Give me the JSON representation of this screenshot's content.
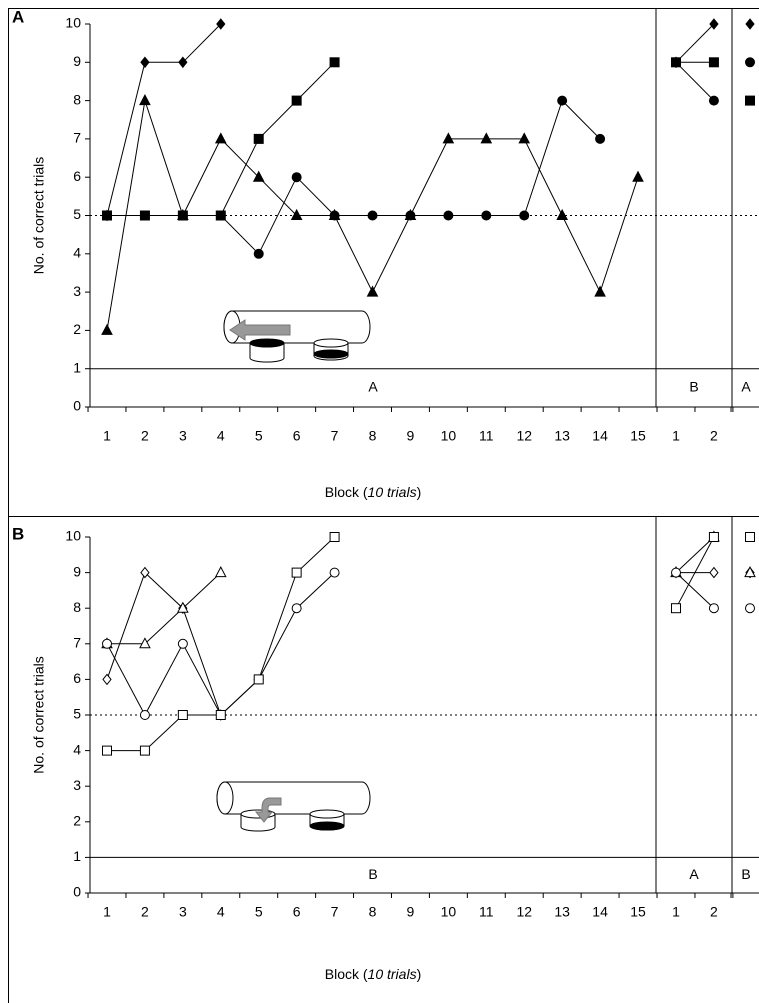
{
  "chart_data": [
    {
      "type": "line",
      "panel_label": "A",
      "ylabel": "No. of correct trials",
      "xlabel": [
        "Block (",
        "10 trials",
        ")"
      ],
      "ylim": [
        0,
        10
      ],
      "yticks": [
        0,
        1,
        2,
        3,
        4,
        5,
        6,
        7,
        8,
        9,
        10
      ],
      "reference_line": 5,
      "phase_band": [
        0,
        1
      ],
      "phases": [
        {
          "label": "A",
          "categories": [
            "1",
            "2",
            "3",
            "4",
            "5",
            "6",
            "7",
            "8",
            "9",
            "10",
            "11",
            "12",
            "13",
            "14",
            "15"
          ]
        },
        {
          "label": "B",
          "categories": [
            "1",
            "2"
          ]
        },
        {
          "label": "A",
          "categories": [
            null
          ]
        }
      ],
      "series": [
        {
          "marker": "diamond",
          "filled": true,
          "values": [
            [
              5,
              9,
              9,
              10,
              null,
              null,
              null,
              null,
              null,
              null,
              null,
              null,
              null,
              null,
              null
            ],
            [
              9,
              10
            ],
            [
              10
            ]
          ]
        },
        {
          "marker": "triangle",
          "filled": true,
          "values": [
            [
              2,
              8,
              5,
              7,
              6,
              5,
              5,
              3,
              5,
              7,
              7,
              7,
              5,
              3,
              6
            ],
            [
              null,
              null
            ],
            [
              null
            ]
          ]
        },
        {
          "marker": "circle",
          "filled": true,
          "values": [
            [
              5,
              5,
              5,
              5,
              4,
              6,
              5,
              5,
              5,
              5,
              5,
              5,
              8,
              7,
              null
            ],
            [
              9,
              8
            ],
            [
              9
            ]
          ]
        },
        {
          "marker": "square",
          "filled": true,
          "values": [
            [
              5,
              5,
              5,
              5,
              7,
              8,
              9,
              null,
              null,
              null,
              null,
              null,
              null,
              null,
              null
            ],
            [
              9,
              9
            ],
            [
              8
            ]
          ]
        }
      ]
    },
    {
      "type": "line",
      "panel_label": "B",
      "ylabel": "No. of correct trials",
      "xlabel": [
        "Block (",
        "10 trials",
        ")"
      ],
      "ylim": [
        0,
        10
      ],
      "yticks": [
        0,
        1,
        2,
        3,
        4,
        5,
        6,
        7,
        8,
        9,
        10
      ],
      "reference_line": 5,
      "phase_band": [
        0,
        1
      ],
      "phases": [
        {
          "label": "B",
          "categories": [
            "1",
            "2",
            "3",
            "4",
            "5",
            "6",
            "7",
            "8",
            "9",
            "10",
            "11",
            "12",
            "13",
            "14",
            "15"
          ]
        },
        {
          "label": "A",
          "categories": [
            "1",
            "2"
          ]
        },
        {
          "label": "B",
          "categories": [
            null
          ]
        }
      ],
      "series": [
        {
          "marker": "diamond",
          "filled": false,
          "values": [
            [
              6,
              9,
              8,
              5,
              null,
              null,
              null,
              null,
              null,
              null,
              null,
              null,
              null,
              null,
              null
            ],
            [
              9,
              9
            ],
            [
              9
            ]
          ]
        },
        {
          "marker": "triangle",
          "filled": false,
          "values": [
            [
              7,
              7,
              8,
              9,
              null,
              null,
              null,
              null,
              null,
              null,
              null,
              null,
              null,
              null,
              null
            ],
            [
              9,
              10
            ],
            [
              9
            ]
          ]
        },
        {
          "marker": "circle",
          "filled": false,
          "values": [
            [
              7,
              5,
              7,
              5,
              6,
              8,
              9,
              null,
              null,
              null,
              null,
              null,
              null,
              null,
              null
            ],
            [
              9,
              8
            ],
            [
              8
            ]
          ]
        },
        {
          "marker": "square",
          "filled": false,
          "values": [
            [
              4,
              4,
              5,
              5,
              6,
              9,
              10,
              null,
              null,
              null,
              null,
              null,
              null,
              null,
              null
            ],
            [
              8,
              10
            ],
            [
              10
            ]
          ]
        }
      ]
    }
  ]
}
